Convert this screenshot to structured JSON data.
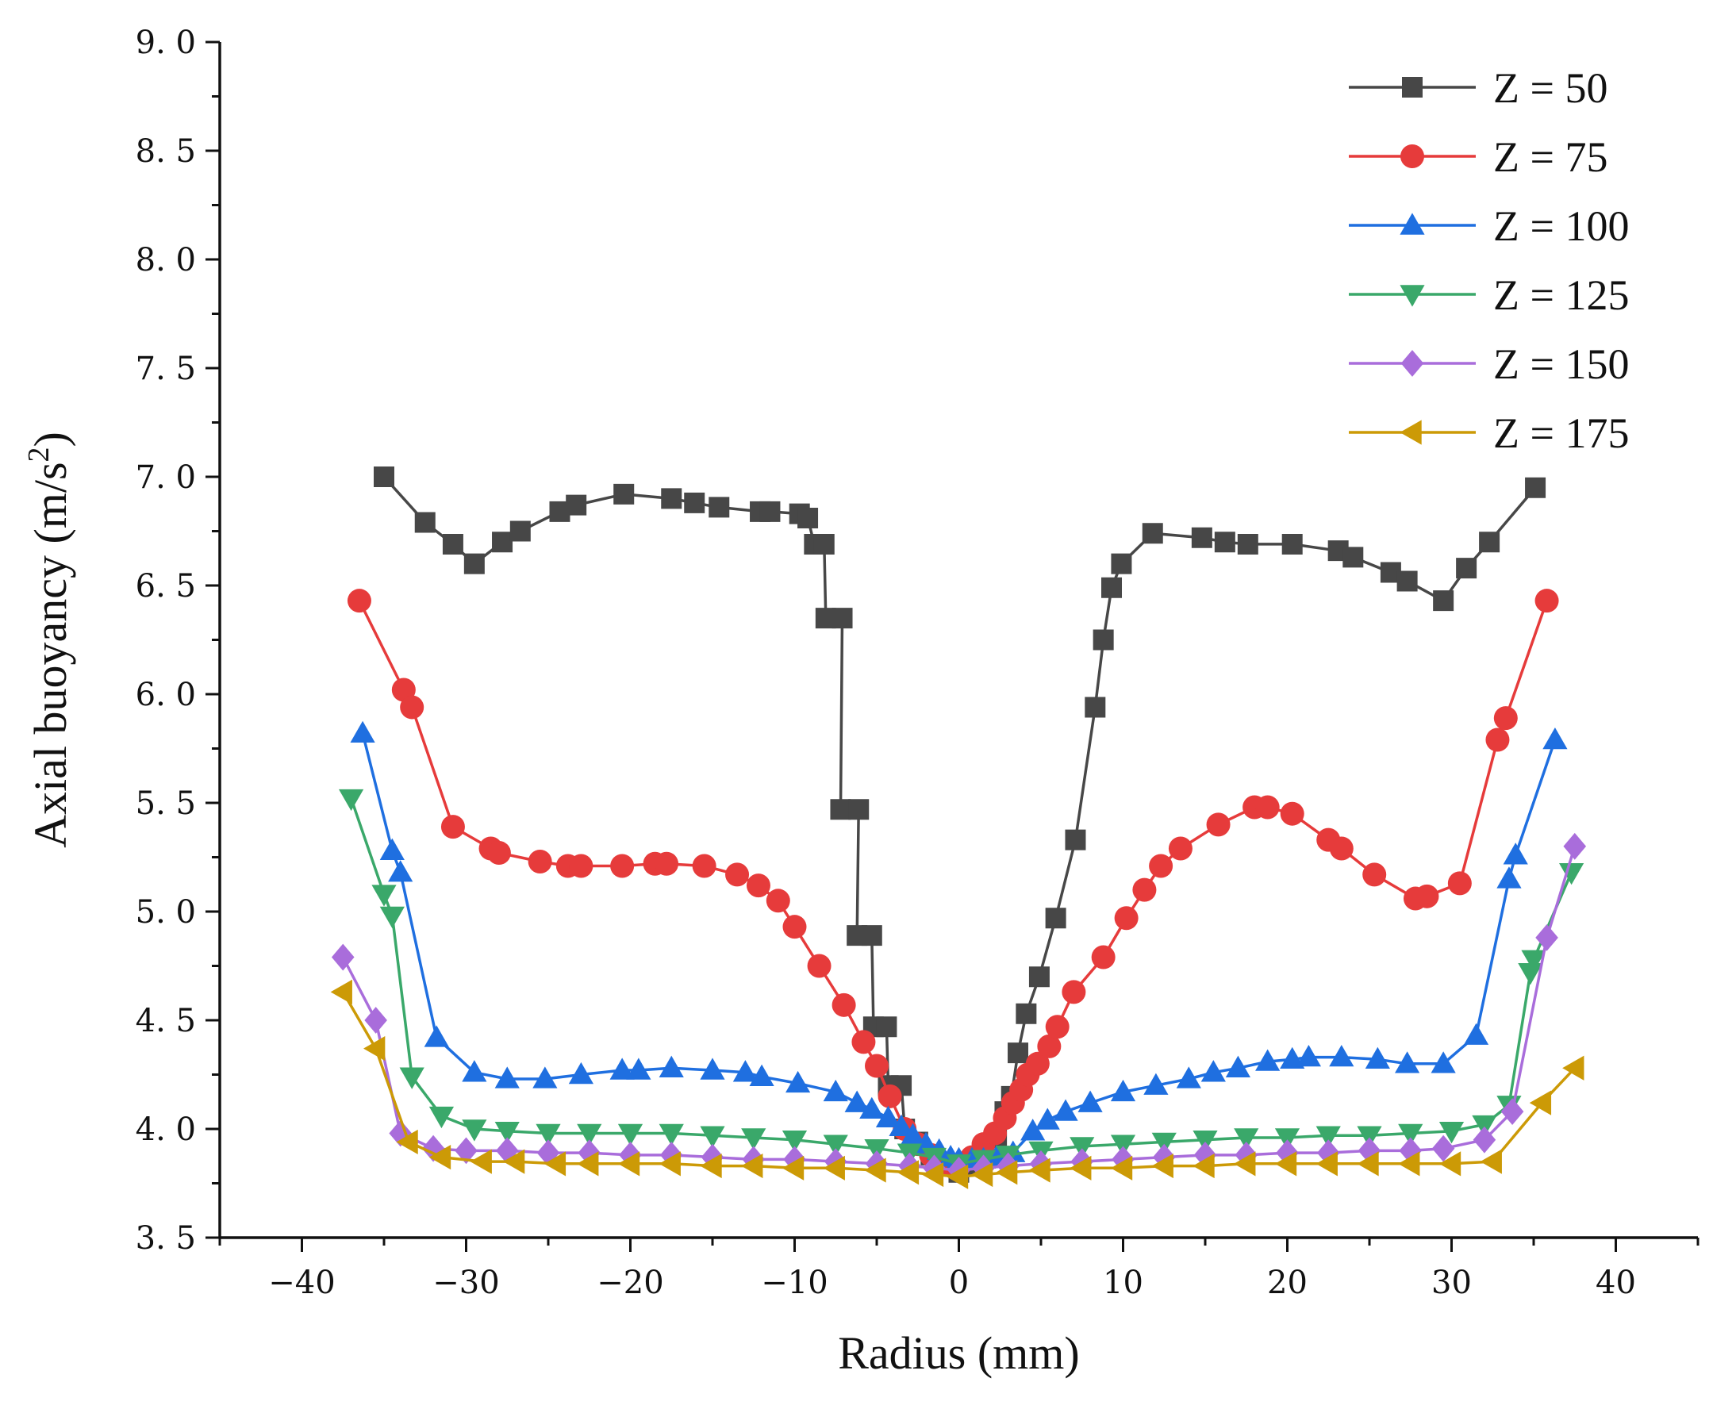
{
  "chart_data": {
    "type": "line",
    "title": "",
    "xlabel": "Radius (mm)",
    "ylabel_main": "Axial buoyancy (m/s",
    "ylabel_sup": "2",
    "ylabel_close": ")",
    "xlim": [
      -45,
      45
    ],
    "ylim": [
      3.5,
      9.0
    ],
    "x_ticks": [
      -40,
      -30,
      -20,
      -10,
      0,
      10,
      20,
      30,
      40
    ],
    "x_tick_labels": [
      "−40",
      "−30",
      "−20",
      "−10",
      "0",
      "10",
      "20",
      "30",
      "40"
    ],
    "y_ticks": [
      3.5,
      4.0,
      4.5,
      5.0,
      5.5,
      6.0,
      6.5,
      7.0,
      7.5,
      8.0,
      8.5,
      9.0
    ],
    "y_tick_labels": [
      "3. 5",
      "4. 0",
      "4. 5",
      "5. 0",
      "5. 5",
      "6. 0",
      "6. 5",
      "7. 0",
      "7. 5",
      "8. 0",
      "8. 5",
      "9. 0"
    ],
    "grid": false,
    "legend_position": "top-right",
    "series": [
      {
        "name": "Z = 50",
        "color": "#474747",
        "marker": "square",
        "points": [
          [
            -35,
            7.0
          ],
          [
            -32.5,
            6.79
          ],
          [
            -30.8,
            6.69
          ],
          [
            -29.5,
            6.6
          ],
          [
            -27.8,
            6.7
          ],
          [
            -26.7,
            6.75
          ],
          [
            -24.3,
            6.84
          ],
          [
            -23.3,
            6.87
          ],
          [
            -20.4,
            6.92
          ],
          [
            -17.5,
            6.9
          ],
          [
            -16.1,
            6.88
          ],
          [
            -14.6,
            6.86
          ],
          [
            -12.1,
            6.84
          ],
          [
            -11.5,
            6.84
          ],
          [
            -9.7,
            6.83
          ],
          [
            -9.2,
            6.81
          ],
          [
            -8.8,
            6.69
          ],
          [
            -8.2,
            6.69
          ],
          [
            -8.1,
            6.35
          ],
          [
            -7.1,
            6.35
          ],
          [
            -7.2,
            5.47
          ],
          [
            -6.1,
            5.47
          ],
          [
            -6.2,
            4.89
          ],
          [
            -5.3,
            4.89
          ],
          [
            -5.2,
            4.47
          ],
          [
            -4.4,
            4.47
          ],
          [
            -4.3,
            4.2
          ],
          [
            -3.5,
            4.2
          ],
          [
            -3.3,
            4.0
          ],
          [
            -2.5,
            3.94
          ],
          [
            -1.7,
            3.88
          ],
          [
            -0.8,
            3.84
          ],
          [
            0,
            3.8
          ],
          [
            0.8,
            3.83
          ],
          [
            1.5,
            3.88
          ],
          [
            2.3,
            3.96
          ],
          [
            2.8,
            4.08
          ],
          [
            3.2,
            4.15
          ],
          [
            3.6,
            4.35
          ],
          [
            4.1,
            4.53
          ],
          [
            4.9,
            4.7
          ],
          [
            5.9,
            4.97
          ],
          [
            7.1,
            5.33
          ],
          [
            8.3,
            5.94
          ],
          [
            8.8,
            6.25
          ],
          [
            9.3,
            6.49
          ],
          [
            9.9,
            6.6
          ],
          [
            11.8,
            6.74
          ],
          [
            14.8,
            6.72
          ],
          [
            16.2,
            6.7
          ],
          [
            17.6,
            6.69
          ],
          [
            20.3,
            6.69
          ],
          [
            23.1,
            6.66
          ],
          [
            24.0,
            6.63
          ],
          [
            26.3,
            6.56
          ],
          [
            27.3,
            6.52
          ],
          [
            29.5,
            6.43
          ],
          [
            30.9,
            6.58
          ],
          [
            32.3,
            6.7
          ],
          [
            35.1,
            6.95
          ]
        ]
      },
      {
        "name": "Z = 75",
        "color": "#e63b3b",
        "marker": "circle",
        "points": [
          [
            -36.5,
            6.43
          ],
          [
            -33.8,
            6.02
          ],
          [
            -33.3,
            5.94
          ],
          [
            -30.8,
            5.39
          ],
          [
            -28.5,
            5.29
          ],
          [
            -28.0,
            5.27
          ],
          [
            -25.5,
            5.23
          ],
          [
            -23.8,
            5.21
          ],
          [
            -23.0,
            5.21
          ],
          [
            -20.5,
            5.21
          ],
          [
            -18.5,
            5.22
          ],
          [
            -17.8,
            5.22
          ],
          [
            -15.5,
            5.21
          ],
          [
            -13.5,
            5.17
          ],
          [
            -12.2,
            5.12
          ],
          [
            -11.0,
            5.05
          ],
          [
            -10.0,
            4.93
          ],
          [
            -8.5,
            4.75
          ],
          [
            -7.0,
            4.57
          ],
          [
            -5.8,
            4.4
          ],
          [
            -5.0,
            4.29
          ],
          [
            -4.2,
            4.15
          ],
          [
            -3.3,
            4.0
          ],
          [
            -2.5,
            3.93
          ],
          [
            -1.7,
            3.88
          ],
          [
            -0.8,
            3.84
          ],
          [
            0,
            3.83
          ],
          [
            0.8,
            3.87
          ],
          [
            1.5,
            3.93
          ],
          [
            2.2,
            3.98
          ],
          [
            2.8,
            4.05
          ],
          [
            3.3,
            4.12
          ],
          [
            3.8,
            4.18
          ],
          [
            4.2,
            4.25
          ],
          [
            4.8,
            4.3
          ],
          [
            5.5,
            4.38
          ],
          [
            6.0,
            4.47
          ],
          [
            7.0,
            4.63
          ],
          [
            8.8,
            4.79
          ],
          [
            10.2,
            4.97
          ],
          [
            11.3,
            5.1
          ],
          [
            12.3,
            5.21
          ],
          [
            13.5,
            5.29
          ],
          [
            15.8,
            5.4
          ],
          [
            18.0,
            5.48
          ],
          [
            18.8,
            5.48
          ],
          [
            20.3,
            5.45
          ],
          [
            22.5,
            5.33
          ],
          [
            23.3,
            5.29
          ],
          [
            25.3,
            5.17
          ],
          [
            27.8,
            5.06
          ],
          [
            28.5,
            5.07
          ],
          [
            30.5,
            5.13
          ],
          [
            32.8,
            5.79
          ],
          [
            33.3,
            5.89
          ],
          [
            35.8,
            6.43
          ]
        ]
      },
      {
        "name": "Z = 100",
        "color": "#1f6fe0",
        "marker": "triangle-up",
        "points": [
          [
            -36.3,
            5.82
          ],
          [
            -34.5,
            5.28
          ],
          [
            -34.0,
            5.18
          ],
          [
            -31.8,
            4.42
          ],
          [
            -29.5,
            4.26
          ],
          [
            -27.5,
            4.23
          ],
          [
            -25.2,
            4.23
          ],
          [
            -23.0,
            4.25
          ],
          [
            -20.5,
            4.27
          ],
          [
            -19.5,
            4.27
          ],
          [
            -17.5,
            4.28
          ],
          [
            -15.0,
            4.27
          ],
          [
            -13.0,
            4.26
          ],
          [
            -12.0,
            4.24
          ],
          [
            -9.8,
            4.21
          ],
          [
            -7.5,
            4.17
          ],
          [
            -6.2,
            4.12
          ],
          [
            -5.3,
            4.09
          ],
          [
            -4.3,
            4.05
          ],
          [
            -3.5,
            4.01
          ],
          [
            -2.8,
            3.97
          ],
          [
            -2.0,
            3.93
          ],
          [
            -1.2,
            3.9
          ],
          [
            -0.5,
            3.87
          ],
          [
            0,
            3.86
          ],
          [
            0.8,
            3.86
          ],
          [
            1.5,
            3.86
          ],
          [
            2.3,
            3.87
          ],
          [
            3.3,
            3.89
          ],
          [
            4.5,
            3.99
          ],
          [
            5.4,
            4.04
          ],
          [
            6.5,
            4.08
          ],
          [
            8.0,
            4.12
          ],
          [
            10.0,
            4.17
          ],
          [
            12.0,
            4.2
          ],
          [
            14.0,
            4.23
          ],
          [
            15.5,
            4.26
          ],
          [
            17.0,
            4.28
          ],
          [
            18.8,
            4.31
          ],
          [
            20.3,
            4.32
          ],
          [
            21.3,
            4.33
          ],
          [
            23.3,
            4.33
          ],
          [
            25.5,
            4.32
          ],
          [
            27.3,
            4.3
          ],
          [
            29.5,
            4.3
          ],
          [
            31.5,
            4.43
          ],
          [
            33.5,
            5.15
          ],
          [
            33.9,
            5.26
          ],
          [
            36.3,
            5.79
          ]
        ]
      },
      {
        "name": "Z = 125",
        "color": "#3aa86a",
        "marker": "triangle-down",
        "points": [
          [
            -37.0,
            5.52
          ],
          [
            -35.0,
            5.08
          ],
          [
            -34.5,
            4.98
          ],
          [
            -33.3,
            4.24
          ],
          [
            -31.5,
            4.06
          ],
          [
            -29.5,
            4.0
          ],
          [
            -27.5,
            3.99
          ],
          [
            -25.0,
            3.98
          ],
          [
            -22.5,
            3.98
          ],
          [
            -20.0,
            3.98
          ],
          [
            -17.5,
            3.98
          ],
          [
            -15.0,
            3.97
          ],
          [
            -12.5,
            3.96
          ],
          [
            -10.0,
            3.95
          ],
          [
            -7.5,
            3.93
          ],
          [
            -5.0,
            3.91
          ],
          [
            -3.0,
            3.89
          ],
          [
            -1.5,
            3.87
          ],
          [
            0,
            3.84
          ],
          [
            1.5,
            3.86
          ],
          [
            3.0,
            3.88
          ],
          [
            5.0,
            3.9
          ],
          [
            7.5,
            3.92
          ],
          [
            10.0,
            3.93
          ],
          [
            12.5,
            3.94
          ],
          [
            15.0,
            3.95
          ],
          [
            17.5,
            3.96
          ],
          [
            20.0,
            3.96
          ],
          [
            22.5,
            3.97
          ],
          [
            25.0,
            3.97
          ],
          [
            27.5,
            3.98
          ],
          [
            30.0,
            3.99
          ],
          [
            32.0,
            4.02
          ],
          [
            33.5,
            4.11
          ],
          [
            34.8,
            4.72
          ],
          [
            35.0,
            4.78
          ],
          [
            37.3,
            5.18
          ]
        ]
      },
      {
        "name": "Z = 150",
        "color": "#a96ddb",
        "marker": "diamond",
        "points": [
          [
            -37.5,
            4.79
          ],
          [
            -35.5,
            4.5
          ],
          [
            -34.0,
            3.98
          ],
          [
            -32.0,
            3.91
          ],
          [
            -30.0,
            3.9
          ],
          [
            -27.5,
            3.9
          ],
          [
            -25.0,
            3.89
          ],
          [
            -22.5,
            3.89
          ],
          [
            -20.0,
            3.88
          ],
          [
            -17.5,
            3.88
          ],
          [
            -15.0,
            3.87
          ],
          [
            -12.5,
            3.86
          ],
          [
            -10.0,
            3.86
          ],
          [
            -7.5,
            3.85
          ],
          [
            -5.0,
            3.84
          ],
          [
            -3.0,
            3.83
          ],
          [
            -1.5,
            3.82
          ],
          [
            0,
            3.81
          ],
          [
            1.5,
            3.82
          ],
          [
            3.0,
            3.83
          ],
          [
            5.0,
            3.84
          ],
          [
            7.5,
            3.85
          ],
          [
            10.0,
            3.86
          ],
          [
            12.5,
            3.87
          ],
          [
            15.0,
            3.88
          ],
          [
            17.5,
            3.88
          ],
          [
            20.0,
            3.89
          ],
          [
            22.5,
            3.89
          ],
          [
            25.0,
            3.9
          ],
          [
            27.5,
            3.9
          ],
          [
            29.5,
            3.91
          ],
          [
            32.0,
            3.95
          ],
          [
            33.7,
            4.08
          ],
          [
            35.8,
            4.88
          ],
          [
            37.5,
            5.3
          ]
        ]
      },
      {
        "name": "Z = 175",
        "color": "#cc9a06",
        "marker": "triangle-left",
        "points": [
          [
            -37.5,
            4.63
          ],
          [
            -35.5,
            4.37
          ],
          [
            -33.5,
            3.94
          ],
          [
            -31.5,
            3.87
          ],
          [
            -29.0,
            3.85
          ],
          [
            -27.0,
            3.85
          ],
          [
            -24.5,
            3.84
          ],
          [
            -22.5,
            3.84
          ],
          [
            -20.0,
            3.84
          ],
          [
            -17.5,
            3.84
          ],
          [
            -15.0,
            3.83
          ],
          [
            -12.5,
            3.83
          ],
          [
            -10.0,
            3.82
          ],
          [
            -7.5,
            3.82
          ],
          [
            -5.0,
            3.81
          ],
          [
            -3.0,
            3.8
          ],
          [
            -1.5,
            3.79
          ],
          [
            0,
            3.78
          ],
          [
            1.5,
            3.79
          ],
          [
            3.0,
            3.8
          ],
          [
            5.0,
            3.81
          ],
          [
            7.5,
            3.82
          ],
          [
            10.0,
            3.82
          ],
          [
            12.5,
            3.83
          ],
          [
            15.0,
            3.83
          ],
          [
            17.5,
            3.84
          ],
          [
            20.0,
            3.84
          ],
          [
            22.5,
            3.84
          ],
          [
            25.0,
            3.84
          ],
          [
            27.5,
            3.84
          ],
          [
            30.0,
            3.84
          ],
          [
            32.5,
            3.85
          ],
          [
            35.5,
            4.12
          ],
          [
            37.5,
            4.28
          ]
        ]
      }
    ]
  }
}
